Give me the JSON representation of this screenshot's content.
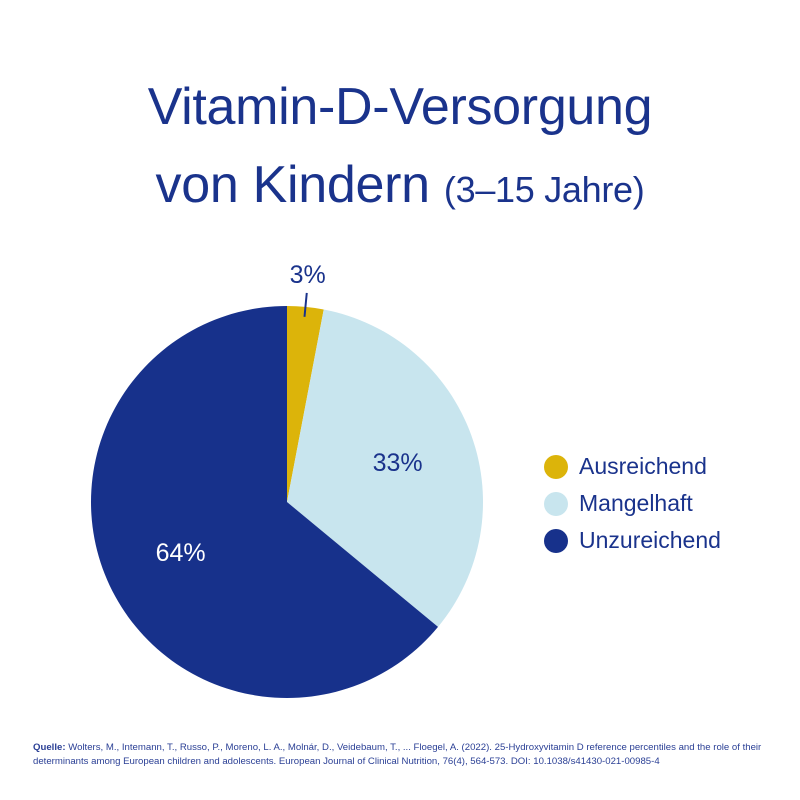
{
  "title": {
    "line1": "Vitamin-D-Versorgung",
    "line2": "von Kindern",
    "subtitle": "(3–15 Jahre)"
  },
  "chart_data": {
    "type": "pie",
    "slices": [
      {
        "label": "Ausreichend",
        "value": 3,
        "display": "3%",
        "color": "#dcb40a"
      },
      {
        "label": "Mangelhaft",
        "value": 33,
        "display": "33%",
        "color": "#c8e5ee"
      },
      {
        "label": "Unzureichend",
        "value": 64,
        "display": "64%",
        "color": "#17318b"
      }
    ],
    "legend_position": "right"
  },
  "colors": {
    "text": "#1a338c",
    "label_light": "#ffffff"
  },
  "source": {
    "label": "Quelle:",
    "text": "Wolters, M., Intemann, T., Russo, P., Moreno, L. A., Molnár, D., Veidebaum, T., ... Floegel, A. (2022). 25-Hydroxyvitamin D reference percentiles and the role of their determinants among European children and adolescents. European Journal of Clinical Nutrition, 76(4), 564-573. DOI: 10.1038/s41430-021-00985-4"
  }
}
